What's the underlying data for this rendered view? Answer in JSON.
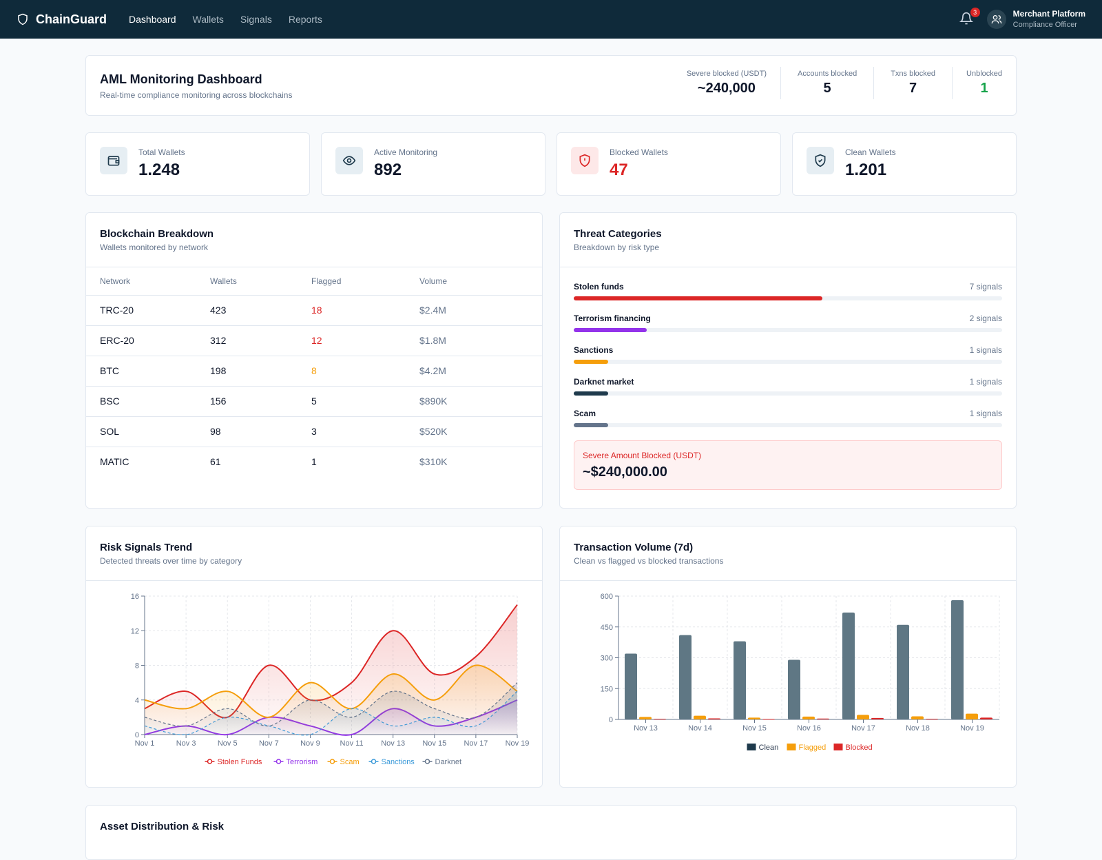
{
  "nav": {
    "brand": "ChainGuard",
    "links": [
      "Dashboard",
      "Wallets",
      "Signals",
      "Reports"
    ],
    "notifications": "3",
    "user_name": "Merchant Platform",
    "user_role": "Compliance Officer"
  },
  "header": {
    "title": "AML Monitoring Dashboard",
    "subtitle": "Real-time compliance monitoring across blockchains",
    "stats": [
      {
        "label": "Severe blocked (USDT)",
        "value": "~240,000"
      },
      {
        "label": "Accounts blocked",
        "value": "5"
      },
      {
        "label": "Txns blocked",
        "value": "7"
      },
      {
        "label": "Unblocked",
        "value": "1"
      }
    ]
  },
  "stat_cards": [
    {
      "label": "Total Wallets",
      "value": "1.248",
      "icon": "wallet-icon"
    },
    {
      "label": "Active Monitoring",
      "value": "892",
      "icon": "eye-icon"
    },
    {
      "label": "Blocked Wallets",
      "value": "47",
      "icon": "shield-alert-icon"
    },
    {
      "label": "Clean Wallets",
      "value": "1.201",
      "icon": "shield-check-icon"
    }
  ],
  "breakdown": {
    "title": "Blockchain Breakdown",
    "subtitle": "Wallets monitored by network",
    "columns": [
      "Network",
      "Wallets",
      "Flagged",
      "Volume"
    ],
    "rows": [
      {
        "network": "TRC-20",
        "wallets": "423",
        "flagged": "18",
        "volume": "$2.4M"
      },
      {
        "network": "ERC-20",
        "wallets": "312",
        "flagged": "12",
        "volume": "$1.8M"
      },
      {
        "network": "BTC",
        "wallets": "198",
        "flagged": "8",
        "volume": "$4.2M"
      },
      {
        "network": "BSC",
        "wallets": "156",
        "flagged": "5",
        "volume": "$890K"
      },
      {
        "network": "SOL",
        "wallets": "98",
        "flagged": "3",
        "volume": "$520K"
      },
      {
        "network": "MATIC",
        "wallets": "61",
        "flagged": "1",
        "volume": "$310K"
      }
    ]
  },
  "threats": {
    "title": "Threat Categories",
    "subtitle": "Breakdown by risk type",
    "items": [
      {
        "name": "Stolen funds",
        "count": "7 signals",
        "fraction": 0.58,
        "color": "#dc2626"
      },
      {
        "name": "Terrorism financing",
        "count": "2 signals",
        "fraction": 0.17,
        "color": "#9333ea"
      },
      {
        "name": "Sanctions",
        "count": "1 signals",
        "fraction": 0.08,
        "color": "#f59e0b"
      },
      {
        "name": "Darknet market",
        "count": "1 signals",
        "fraction": 0.08,
        "color": "#1e3a4c"
      },
      {
        "name": "Scam",
        "count": "1 signals",
        "fraction": 0.08,
        "color": "#64748b"
      }
    ],
    "severe_label": "Severe Amount Blocked (USDT)",
    "severe_value": "~$240,000.00"
  },
  "risk_trend": {
    "title": "Risk Signals Trend",
    "subtitle": "Detected threats over time by category"
  },
  "tx_volume": {
    "title": "Transaction Volume (7d)",
    "subtitle": "Clean vs flagged vs blocked transactions"
  },
  "asset": {
    "title": "Asset Distribution & Risk"
  },
  "chart_data": [
    {
      "type": "area",
      "x": [
        "Nov 1",
        "Nov 3",
        "Nov 5",
        "Nov 7",
        "Nov 9",
        "Nov 11",
        "Nov 13",
        "Nov 15",
        "Nov 17",
        "Nov 19"
      ],
      "ylim": [
        0,
        16
      ],
      "yticks": [
        0,
        4,
        8,
        12,
        16
      ],
      "legend_position": "bottom",
      "grid": true,
      "series": [
        {
          "name": "Stolen Funds",
          "color": "#dc2626",
          "values": [
            3,
            5,
            2,
            8,
            4,
            6,
            12,
            7,
            9,
            15
          ]
        },
        {
          "name": "Terrorism",
          "color": "#9333ea",
          "values": [
            0,
            1,
            0,
            2,
            1,
            0,
            3,
            1,
            2,
            4
          ]
        },
        {
          "name": "Scam",
          "color": "#f59e0b",
          "values": [
            4,
            3,
            5,
            2,
            6,
            3,
            7,
            4,
            8,
            5
          ]
        },
        {
          "name": "Sanctions",
          "color": "#3b9ad9",
          "values": [
            1,
            0,
            2,
            1,
            0,
            3,
            1,
            2,
            1,
            5
          ]
        },
        {
          "name": "Darknet",
          "color": "#64748b",
          "values": [
            2,
            1,
            3,
            1,
            4,
            2,
            5,
            3,
            2,
            6
          ]
        }
      ]
    },
    {
      "type": "bar",
      "categories": [
        "Nov 13",
        "Nov 14",
        "Nov 15",
        "Nov 16",
        "Nov 17",
        "Nov 18",
        "Nov 19"
      ],
      "ylim": [
        0,
        600
      ],
      "yticks": [
        0,
        150,
        300,
        450,
        600
      ],
      "legend_position": "bottom",
      "grid": true,
      "series": [
        {
          "name": "Clean",
          "color": "#5f7784",
          "legend_color": "#1e3a4c",
          "values": [
            320,
            410,
            380,
            290,
            520,
            460,
            580
          ]
        },
        {
          "name": "Flagged",
          "color": "#f59e0b",
          "values": [
            12,
            18,
            9,
            14,
            22,
            15,
            28
          ]
        },
        {
          "name": "Blocked",
          "color": "#dc2626",
          "values": [
            3,
            5,
            2,
            4,
            7,
            3,
            9
          ]
        }
      ]
    }
  ]
}
